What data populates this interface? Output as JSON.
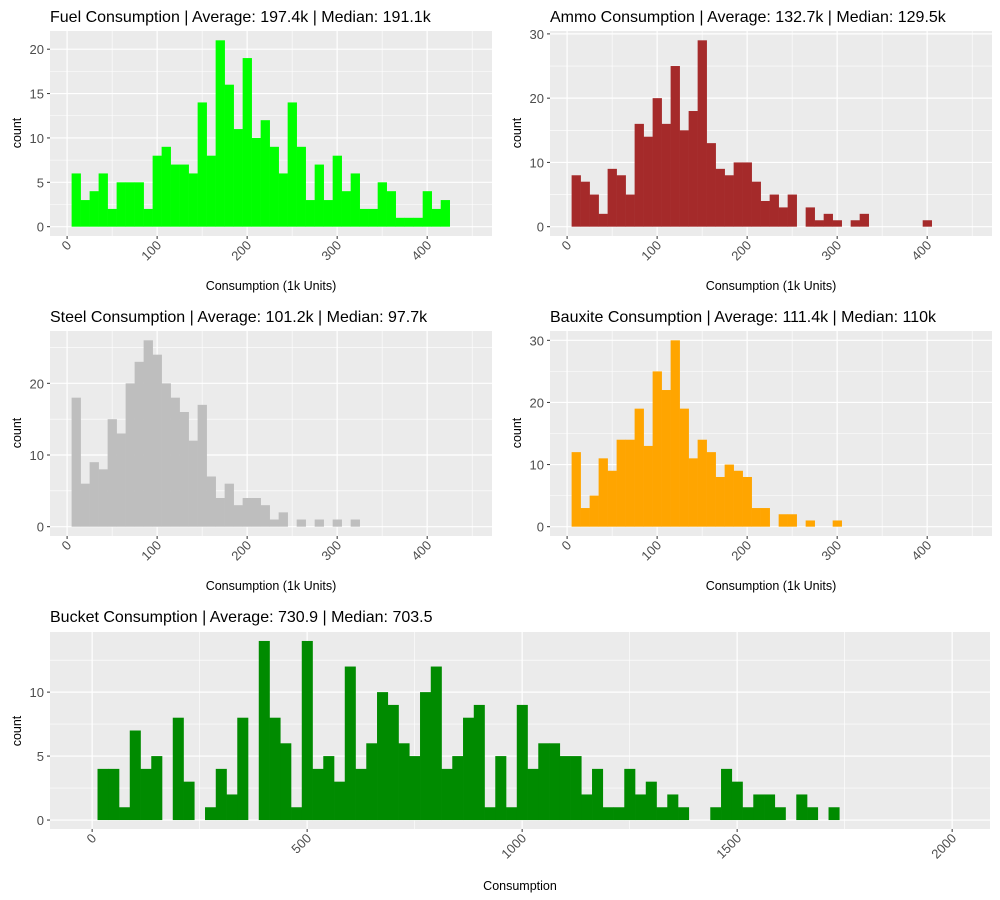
{
  "chart_data": [
    {
      "id": "fuel",
      "type": "bar",
      "title": "Fuel Consumption | Average: 197.4k | Median: 191.1k",
      "xlabel": "Consumption (1k Units)",
      "ylabel": "count",
      "color": "#00FF00",
      "bin_width": 10,
      "bin_start": 5,
      "values": [
        6,
        3,
        4,
        6,
        2,
        5,
        5,
        5,
        2,
        8,
        9,
        7,
        7,
        6,
        14,
        8,
        21,
        16,
        11,
        19,
        10,
        12,
        9,
        6,
        14,
        9,
        3,
        7,
        3,
        8,
        4,
        6,
        2,
        2,
        5,
        4,
        1,
        1,
        1,
        4,
        2,
        3
      ],
      "xlim": [
        -19,
        472
      ],
      "ylim": [
        -1.05,
        22.05
      ],
      "x_ticks": [
        0,
        100,
        200,
        300,
        400
      ],
      "x_tick_labels": [
        "0",
        "100",
        "200",
        "300",
        "400"
      ],
      "x_minor": [
        50,
        150,
        250,
        350,
        450
      ],
      "y_ticks": [
        0,
        5,
        10,
        15,
        20
      ],
      "y_tick_labels": [
        "0",
        "5",
        "10",
        "15",
        "20"
      ],
      "y_minor": [
        2.5,
        7.5,
        12.5,
        17.5
      ],
      "grid": true
    },
    {
      "id": "ammo",
      "type": "bar",
      "title": "Ammo Consumption | Average: 132.7k | Median: 129.5k",
      "xlabel": "Consumption (1k Units)",
      "ylabel": "count",
      "color": "#A52A2A",
      "bin_width": 10,
      "bin_start": 5,
      "values": [
        8,
        7,
        5,
        2,
        9,
        8,
        5,
        16,
        14,
        20,
        16,
        25,
        15,
        18,
        29,
        13,
        9,
        8,
        10,
        10,
        7,
        4,
        5,
        3,
        5,
        0,
        3,
        1,
        2,
        1,
        0,
        1,
        2,
        0,
        0,
        0,
        0,
        0,
        0,
        1
      ],
      "xlim": [
        -19,
        472
      ],
      "ylim": [
        -1.45,
        30.45
      ],
      "x_ticks": [
        0,
        100,
        200,
        300,
        400
      ],
      "x_tick_labels": [
        "0",
        "100",
        "200",
        "300",
        "400"
      ],
      "x_minor": [
        50,
        150,
        250,
        350,
        450
      ],
      "y_ticks": [
        0,
        10,
        20,
        30
      ],
      "y_tick_labels": [
        "0",
        "10",
        "20",
        "30"
      ],
      "y_minor": [
        5,
        15,
        25
      ],
      "grid": true
    },
    {
      "id": "steel",
      "type": "bar",
      "title": "Steel Consumption | Average: 101.2k | Median: 97.7k",
      "xlabel": "Consumption (1k Units)",
      "ylabel": "count",
      "color": "#BEBEBE",
      "bin_width": 10,
      "bin_start": 5,
      "values": [
        18,
        6,
        9,
        8,
        15,
        13,
        20,
        23,
        26,
        24,
        20,
        18,
        16,
        12,
        17,
        7,
        4,
        6,
        3,
        4,
        4,
        3,
        1,
        2,
        0,
        1,
        0,
        1,
        0,
        1,
        0,
        1
      ],
      "xlim": [
        -19,
        472
      ],
      "ylim": [
        -1.3,
        27.3
      ],
      "x_ticks": [
        0,
        100,
        200,
        300,
        400
      ],
      "x_tick_labels": [
        "0",
        "100",
        "200",
        "300",
        "400"
      ],
      "x_minor": [
        50,
        150,
        250,
        350,
        450
      ],
      "y_ticks": [
        0,
        10,
        20
      ],
      "y_tick_labels": [
        "0",
        "10",
        "20"
      ],
      "y_minor": [
        5,
        15,
        25
      ],
      "grid": true
    },
    {
      "id": "bauxite",
      "type": "bar",
      "title": "Bauxite Consumption | Average: 111.4k | Median: 110k",
      "xlabel": "Consumption (1k Units)",
      "ylabel": "count",
      "color": "#FFA500",
      "bin_width": 10,
      "bin_start": 5,
      "values": [
        12,
        3,
        5,
        11,
        9,
        14,
        14,
        19,
        13,
        25,
        22,
        30,
        19,
        11,
        14,
        12,
        8,
        10,
        9,
        8,
        3,
        3,
        0,
        2,
        2,
        0,
        1,
        0,
        0,
        1
      ],
      "xlim": [
        -19,
        472
      ],
      "ylim": [
        -1.5,
        31.5
      ],
      "x_ticks": [
        0,
        100,
        200,
        300,
        400
      ],
      "x_tick_labels": [
        "0",
        "100",
        "200",
        "300",
        "400"
      ],
      "x_minor": [
        50,
        150,
        250,
        350,
        450
      ],
      "y_ticks": [
        0,
        10,
        20,
        30
      ],
      "y_tick_labels": [
        "0",
        "10",
        "20",
        "30"
      ],
      "y_minor": [
        5,
        15,
        25
      ],
      "grid": true
    },
    {
      "id": "bucket",
      "type": "bar",
      "title": "Bucket Consumption | Average: 730.9 | Median: 703.5",
      "xlabel": "Consumption",
      "ylabel": "count",
      "color": "#008B00",
      "bin_width": 25,
      "bin_start": 12.5,
      "values": [
        4,
        4,
        1,
        7,
        4,
        5,
        0,
        8,
        3,
        0,
        1,
        4,
        2,
        8,
        0,
        14,
        8,
        6,
        1,
        14,
        4,
        5,
        3,
        12,
        4,
        6,
        10,
        9,
        6,
        5,
        10,
        12,
        4,
        5,
        8,
        9,
        1,
        5,
        1,
        9,
        4,
        6,
        6,
        5,
        5,
        2,
        4,
        1,
        1,
        4,
        2,
        3,
        1,
        2,
        1,
        0,
        0,
        1,
        4,
        3,
        1,
        2,
        2,
        1,
        0,
        2,
        1,
        0,
        1
      ],
      "xlim": [
        -98,
        2088
      ],
      "ylim": [
        -0.7,
        14.7
      ],
      "x_ticks": [
        0,
        500,
        1000,
        1500,
        2000
      ],
      "x_tick_labels": [
        "0",
        "500",
        "1000",
        "1500",
        "2000"
      ],
      "x_minor": [
        250,
        750,
        1250,
        1750
      ],
      "y_ticks": [
        0,
        5,
        10
      ],
      "y_tick_labels": [
        "0",
        "5",
        "10"
      ],
      "y_minor": [
        2.5,
        7.5,
        12.5
      ],
      "grid": true
    }
  ]
}
